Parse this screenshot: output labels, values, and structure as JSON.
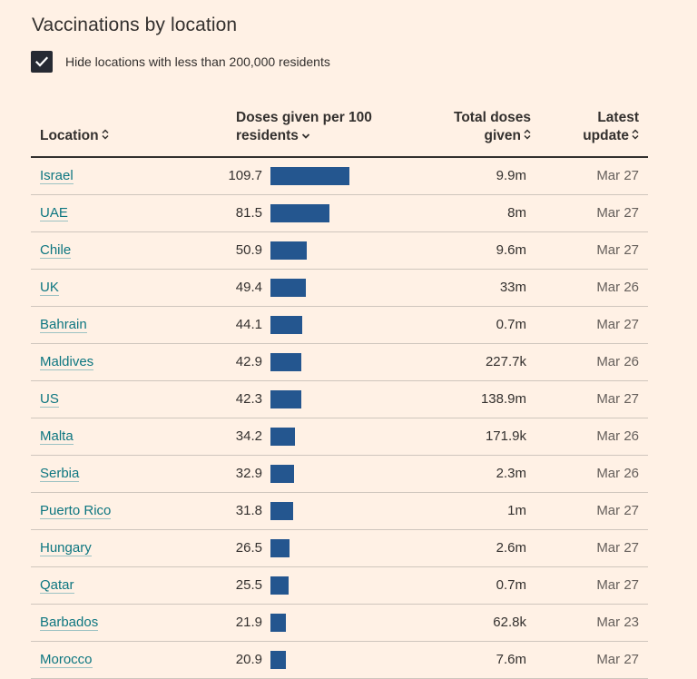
{
  "title": "Vaccinations by location",
  "filter": {
    "label": "Hide locations with less than 200,000 residents",
    "checked": true
  },
  "columns": {
    "location": "Location",
    "doses_line1": "Doses given per 100",
    "doses_line2": "residents",
    "total_line1": "Total doses",
    "total_line2": "given",
    "update_line1": "Latest",
    "update_line2": "update"
  },
  "colors": {
    "bar": "#24568f",
    "link": "#0d7680",
    "background": "#fff1e5"
  },
  "icons": {
    "checkbox": "check-icon",
    "sort": "sort-updown-icon",
    "sorted": "chevron-down-icon"
  },
  "chart_data": {
    "type": "table",
    "columns": [
      "Location",
      "Doses given per 100 residents",
      "Total doses given",
      "Latest update"
    ],
    "rows": [
      {
        "location": "Israel",
        "per100": 109.7,
        "per100_label": "109.7",
        "total": "9.9m",
        "date": "Mar 27"
      },
      {
        "location": "UAE",
        "per100": 81.5,
        "per100_label": "81.5",
        "total": "8m",
        "date": "Mar 27"
      },
      {
        "location": "Chile",
        "per100": 50.9,
        "per100_label": "50.9",
        "total": "9.6m",
        "date": "Mar 27"
      },
      {
        "location": "UK",
        "per100": 49.4,
        "per100_label": "49.4",
        "total": "33m",
        "date": "Mar 26"
      },
      {
        "location": "Bahrain",
        "per100": 44.1,
        "per100_label": "44.1",
        "total": "0.7m",
        "date": "Mar 27"
      },
      {
        "location": "Maldives",
        "per100": 42.9,
        "per100_label": "42.9",
        "total": "227.7k",
        "date": "Mar 26"
      },
      {
        "location": "US",
        "per100": 42.3,
        "per100_label": "42.3",
        "total": "138.9m",
        "date": "Mar 27"
      },
      {
        "location": "Malta",
        "per100": 34.2,
        "per100_label": "34.2",
        "total": "171.9k",
        "date": "Mar 26"
      },
      {
        "location": "Serbia",
        "per100": 32.9,
        "per100_label": "32.9",
        "total": "2.3m",
        "date": "Mar 26"
      },
      {
        "location": "Puerto Rico",
        "per100": 31.8,
        "per100_label": "31.8",
        "total": "1m",
        "date": "Mar 27"
      },
      {
        "location": "Hungary",
        "per100": 26.5,
        "per100_label": "26.5",
        "total": "2.6m",
        "date": "Mar 27"
      },
      {
        "location": "Qatar",
        "per100": 25.5,
        "per100_label": "25.5",
        "total": "0.7m",
        "date": "Mar 27"
      },
      {
        "location": "Barbados",
        "per100": 21.9,
        "per100_label": "21.9",
        "total": "62.8k",
        "date": "Mar 23"
      },
      {
        "location": "Morocco",
        "per100": 20.9,
        "per100_label": "20.9",
        "total": "7.6m",
        "date": "Mar 27"
      }
    ]
  }
}
